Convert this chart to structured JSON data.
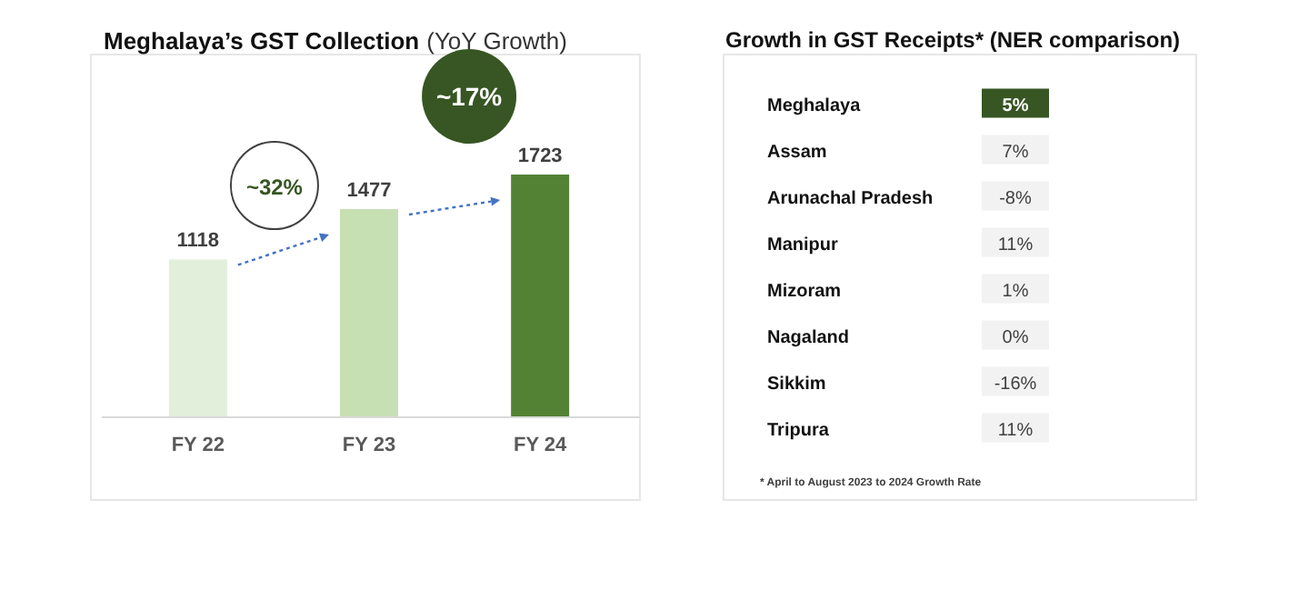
{
  "chart_data": [
    {
      "type": "bar",
      "title": "Meghalaya’s GST Collection",
      "subtitle": "(YoY Growth)",
      "categories": [
        "FY 22",
        "FY 23",
        "FY 24"
      ],
      "values": [
        1118,
        1477,
        1723
      ],
      "colors": [
        "#e2efda",
        "#c6e0b4",
        "#548235"
      ],
      "data_labels": true,
      "annotations": [
        "~32%",
        "~17%"
      ]
    },
    {
      "type": "heatmap",
      "title": "Growth in GST Receipts* (NER comparison)",
      "categories": [
        null
      ],
      "y_categories": [
        "Meghalaya",
        "Assam",
        "Arunachal Pradesh",
        "Manipur",
        "Mizoram",
        "Nagaland",
        "Sikkim",
        "Tripura"
      ],
      "cells": [
        [
          5
        ],
        [
          7
        ],
        [
          -8
        ],
        [
          11
        ],
        [
          1
        ],
        [
          0
        ],
        [
          -16
        ],
        [
          11
        ]
      ],
      "cell_labels": [
        [
          "5%"
        ],
        [
          "7%"
        ],
        [
          "-8%"
        ],
        [
          "11%"
        ],
        [
          "1%"
        ],
        [
          "0%"
        ],
        [
          "-16%"
        ],
        [
          "11%"
        ]
      ],
      "colors": [
        "#375623",
        "#f2f2f2",
        "#f2f2f2",
        "#f2f2f2",
        "#f2f2f2",
        "#f2f2f2",
        "#f2f2f2",
        "#f2f2f2"
      ],
      "annotations": [
        "* April to August 2023 to 2024 Growth Rate"
      ]
    }
  ]
}
